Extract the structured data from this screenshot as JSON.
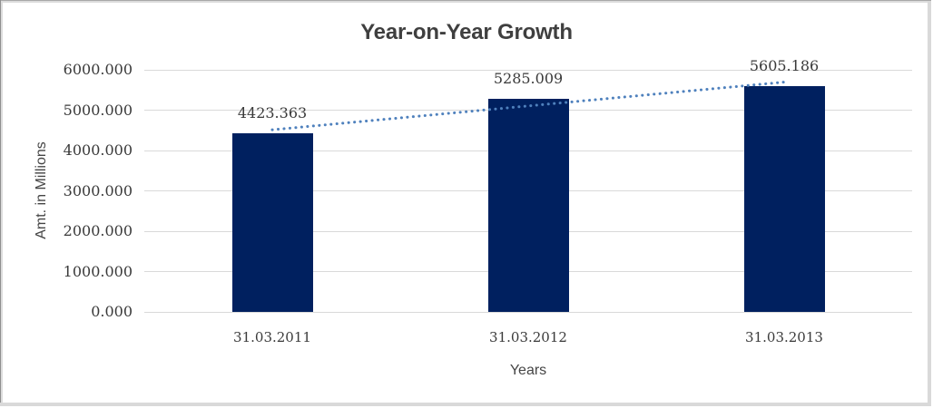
{
  "chart_data": {
    "type": "bar",
    "title": "Year-on-Year Growth",
    "categories": [
      "31.03.2011",
      "31.03.2012",
      "31.03.2013"
    ],
    "values": [
      4423.363,
      5285.009,
      5605.186
    ],
    "data_labels": [
      "4423.363",
      "5285.009",
      "5605.186"
    ],
    "xlabel": "Years",
    "ylabel": "Amt. in Millions",
    "ylim": [
      0,
      6000
    ],
    "ytick_step": 1000,
    "ytick_labels": [
      "0.000",
      "1000.000",
      "2000.000",
      "3000.000",
      "4000.000",
      "5000.000",
      "6000.000"
    ],
    "grid": true,
    "legend": "none",
    "trendline": {
      "type": "linear",
      "style": "dotted"
    },
    "colors": {
      "bar": "#00205f",
      "trendline": "#4f81bd",
      "gridline": "#d9d9d9",
      "axis_text": "#3a3a3a",
      "title_text": "#3f3f3f"
    }
  }
}
